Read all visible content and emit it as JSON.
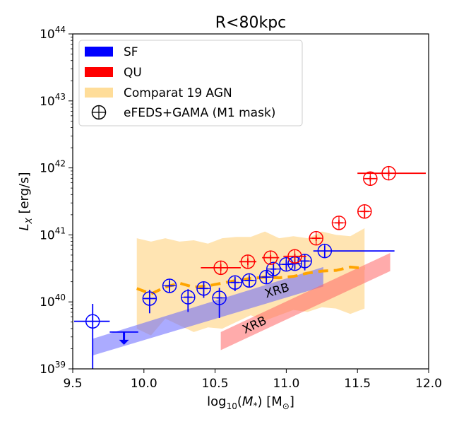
{
  "chart_data": {
    "type": "scatter",
    "title": "R<80kpc",
    "xlabel": "log10(M*) [M⊙]",
    "ylabel": "L_X [erg/s]",
    "xlim": [
      9.5,
      12.0
    ],
    "ylim_log10": [
      39,
      44
    ],
    "y_scale": "log",
    "grid": false,
    "legend_position": "top-left",
    "x_ticks": [
      {
        "value": 9.5,
        "label": "9.5"
      },
      {
        "value": 10.0,
        "label": "10.0"
      },
      {
        "value": 10.5,
        "label": "10.5"
      },
      {
        "value": 11.0,
        "label": "11.0"
      },
      {
        "value": 11.5,
        "label": "11.5"
      },
      {
        "value": 12.0,
        "label": "12.0"
      }
    ],
    "y_ticks": [
      {
        "exp": 39,
        "base": "10",
        "sup": "39"
      },
      {
        "exp": 40,
        "base": "10",
        "sup": "40"
      },
      {
        "exp": 41,
        "base": "10",
        "sup": "41"
      },
      {
        "exp": 42,
        "base": "10",
        "sup": "42"
      },
      {
        "exp": 43,
        "base": "10",
        "sup": "43"
      },
      {
        "exp": 44,
        "base": "10",
        "sup": "44"
      }
    ],
    "legend": [
      {
        "label": "SF",
        "kind": "patch",
        "color": "#0000ff"
      },
      {
        "label": "QU",
        "kind": "patch",
        "color": "#ff0000"
      },
      {
        "label": "Comparat 19 AGN",
        "kind": "band",
        "color": "#ffdd99"
      },
      {
        "label": "eFEDS+GAMA (M1 mask)",
        "kind": "marker",
        "color": "#000000"
      }
    ],
    "colors": {
      "sf": "#0000ff",
      "qu": "#ff0000",
      "agn_band": "#ffa500",
      "agn_line": "#ffa500",
      "xrb_sf": "#6666ff",
      "xrb_qu": "#ff6666"
    },
    "series": [
      {
        "name": "SF",
        "color": "#0000ff",
        "points": [
          {
            "x": 9.64,
            "y": 39.71,
            "xerr": [
              0.13,
              0.12
            ],
            "yerr": [
              0.71,
              0.26
            ]
          },
          {
            "x": 10.04,
            "y": 40.05,
            "xerr": [
              0.04,
              0.04
            ],
            "yerr": [
              0.22,
              0.13
            ]
          },
          {
            "x": 10.18,
            "y": 40.24,
            "xerr": [
              0.03,
              0.03
            ],
            "yerr": [
              0.1,
              0.08
            ]
          },
          {
            "x": 10.31,
            "y": 40.07,
            "xerr": [
              0.03,
              0.03
            ],
            "yerr": [
              0.22,
              0.12
            ]
          },
          {
            "x": 10.42,
            "y": 40.2,
            "xerr": [
              0.03,
              0.03
            ],
            "yerr": [
              0.14,
              0.09
            ]
          },
          {
            "x": 10.53,
            "y": 40.06,
            "xerr": [
              0.02,
              0.02
            ],
            "yerr": [
              0.3,
              0.15
            ]
          },
          {
            "x": 10.64,
            "y": 40.29,
            "xerr": [
              0.03,
              0.03
            ],
            "yerr": [
              0.13,
              0.08
            ]
          },
          {
            "x": 10.74,
            "y": 40.32,
            "xerr": [
              0.03,
              0.03
            ],
            "yerr": [
              0.1,
              0.07
            ]
          },
          {
            "x": 10.86,
            "y": 40.37,
            "xerr": [
              0.03,
              0.03
            ],
            "yerr": [
              0.09,
              0.08
            ]
          },
          {
            "x": 10.91,
            "y": 40.49,
            "xerr": [
              0.02,
              0.02
            ],
            "yerr": [
              0.1,
              0.08
            ]
          },
          {
            "x": 11.0,
            "y": 40.56,
            "xerr": [
              0.03,
              0.03
            ],
            "yerr": [
              0.08,
              0.07
            ]
          },
          {
            "x": 11.06,
            "y": 40.57,
            "xerr": [
              0.03,
              0.03
            ],
            "yerr": [
              0.08,
              0.07
            ]
          },
          {
            "x": 11.13,
            "y": 40.61,
            "xerr": [
              0.03,
              0.03
            ],
            "yerr": [
              0.14,
              0.1
            ]
          },
          {
            "x": 11.27,
            "y": 40.76,
            "xerr": [
              0.08,
              0.49
            ],
            "yerr": [
              0.1,
              0.08
            ]
          }
        ],
        "upper_limits": [
          {
            "x": 9.86,
            "y": 39.55,
            "xerr": [
              0.1,
              0.1
            ],
            "arrow_to": 39.36
          }
        ]
      },
      {
        "name": "QU",
        "color": "#ff0000",
        "points": [
          {
            "x": 10.54,
            "y": 40.51,
            "xerr": [
              0.14,
              0.14
            ],
            "yerr": [
              0.05,
              0.05
            ]
          },
          {
            "x": 10.73,
            "y": 40.6,
            "xerr": [
              0.06,
              0.06
            ],
            "yerr": [
              0.05,
              0.05
            ]
          },
          {
            "x": 10.89,
            "y": 40.66,
            "xerr": [
              0.06,
              0.06
            ],
            "yerr": [
              0.04,
              0.04
            ]
          },
          {
            "x": 11.06,
            "y": 40.68,
            "xerr": [
              0.08,
              0.08
            ],
            "yerr": [
              0.04,
              0.04
            ]
          },
          {
            "x": 11.21,
            "y": 40.95,
            "xerr": [
              0.03,
              0.03
            ],
            "yerr": [
              0.04,
              0.04
            ]
          },
          {
            "x": 11.37,
            "y": 41.18,
            "xerr": [
              0.03,
              0.03
            ],
            "yerr": [
              0.04,
              0.04
            ]
          },
          {
            "x": 11.55,
            "y": 41.35,
            "xerr": [
              0.03,
              0.03
            ],
            "yerr": [
              0.1,
              0.07
            ]
          },
          {
            "x": 11.59,
            "y": 41.84,
            "xerr": [
              0.04,
              0.04
            ],
            "yerr": [
              0.04,
              0.04
            ]
          },
          {
            "x": 11.72,
            "y": 41.92,
            "xerr": [
              0.22,
              0.26
            ],
            "yerr": [
              0.04,
              0.04
            ]
          }
        ]
      }
    ],
    "agn_band": {
      "name": "Comparat 19 AGN",
      "x": [
        9.95,
        10.05,
        10.15,
        10.25,
        10.35,
        10.45,
        10.55,
        10.65,
        10.75,
        10.85,
        10.95,
        11.05,
        11.15,
        11.25,
        11.35,
        11.45,
        11.55
      ],
      "upper": [
        40.95,
        40.9,
        40.95,
        40.9,
        40.92,
        40.87,
        40.95,
        40.97,
        40.97,
        41.05,
        40.95,
        40.98,
        40.95,
        41.05,
        41.0,
        40.98,
        41.1
      ],
      "lower": [
        39.6,
        39.5,
        39.75,
        39.65,
        39.55,
        39.62,
        39.6,
        39.7,
        39.8,
        39.72,
        39.8,
        39.88,
        39.85,
        39.92,
        39.9,
        39.82,
        39.9
      ]
    },
    "agn_median": {
      "x": [
        9.95,
        10.05,
        10.15,
        10.25,
        10.35,
        10.45,
        10.55,
        10.65,
        10.75,
        10.85,
        10.95,
        11.05,
        11.15,
        11.25,
        11.35,
        11.45,
        11.55
      ],
      "y": [
        40.2,
        40.12,
        40.22,
        40.28,
        40.22,
        40.24,
        40.28,
        40.32,
        40.35,
        40.37,
        40.36,
        40.38,
        40.43,
        40.46,
        40.47,
        40.52,
        40.5
      ]
    },
    "xrb_sf": {
      "name": "XRB",
      "x_start": 9.64,
      "x_end": 11.26,
      "upper_start": 39.45,
      "upper_end": 40.52,
      "lower_start": 39.2,
      "lower_end": 40.23
    },
    "xrb_qu": {
      "name": "XRB",
      "x_start": 10.54,
      "x_end": 11.73,
      "upper_start": 39.55,
      "upper_end": 40.73,
      "lower_start": 39.28,
      "lower_end": 40.46
    }
  }
}
